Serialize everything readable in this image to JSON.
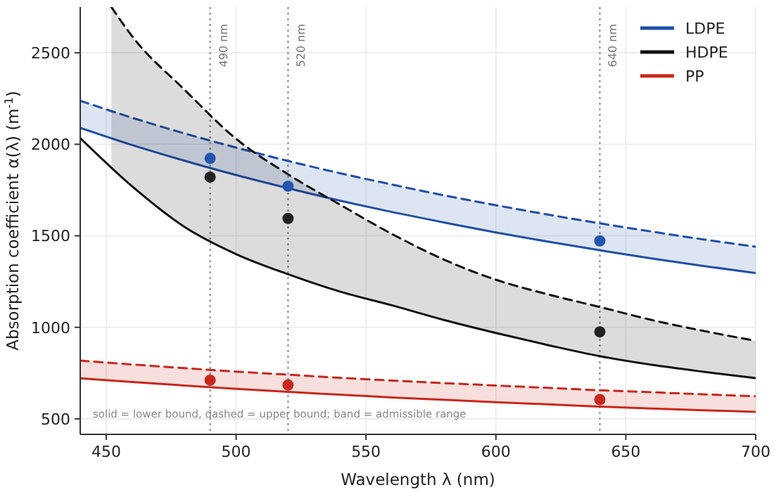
{
  "chart_data": {
    "type": "line",
    "xlabel": "Wavelength λ (nm)",
    "ylabel": "Absorption coefficient α(λ) (m$^{-1}$)",
    "xlim": [
      440,
      700
    ],
    "xticks": [
      450,
      500,
      550,
      600,
      650,
      700
    ],
    "ylim": [
      415,
      2750
    ],
    "yticks": [
      500,
      1000,
      1500,
      2000,
      2500
    ],
    "grid": true,
    "legend": "top right",
    "series": [
      {
        "name": "LDPE",
        "color": "#1f4fa8",
        "line_style": "solid",
        "x": [
          440,
          460,
          480,
          500,
          520,
          540,
          560,
          580,
          600,
          620,
          640,
          660,
          680,
          700
        ],
        "values": [
          2090,
          1996,
          1911,
          1832,
          1760,
          1692,
          1630,
          1573,
          1518,
          1468,
          1421,
          1376,
          1335,
          1296
        ]
      },
      {
        "color": "#1f4fa8",
        "line_style": "dashed",
        "x": [
          440,
          460,
          480,
          500,
          520,
          540,
          560,
          580,
          600,
          620,
          640,
          660,
          680,
          700
        ],
        "values": [
          2238,
          2145,
          2060,
          1982,
          1909,
          1842,
          1780,
          1721,
          1667,
          1616,
          1568,
          1523,
          1480,
          1440
        ],
        "lower": [
          2090,
          1996,
          1911,
          1832,
          1760,
          1692,
          1630,
          1573,
          1518,
          1468,
          1421,
          1376,
          1335,
          1296
        ],
        "upper": [
          2238,
          2145,
          2060,
          1982,
          1909,
          1842,
          1780,
          1721,
          1667,
          1616,
          1568,
          1523,
          1480,
          1440
        ]
      },
      {
        "name": "HDPE",
        "color": "#111111",
        "line_style": "solid",
        "x": [
          440,
          460,
          480,
          500,
          520,
          540,
          560,
          580,
          600,
          620,
          640,
          660,
          680,
          700
        ],
        "values": [
          2034,
          1770,
          1550,
          1400,
          1290,
          1195,
          1120,
          1040,
          969,
          903,
          842,
          795,
          757,
          722
        ]
      },
      {
        "color": "#111111",
        "line_style": "dashed",
        "x": [
          452,
          460,
          480,
          500,
          520,
          540,
          560,
          580,
          600,
          620,
          640,
          660,
          680,
          700
        ],
        "values": [
          2750,
          2590,
          2300,
          2030,
          1836,
          1670,
          1510,
          1370,
          1260,
          1180,
          1111,
          1040,
          980,
          926
        ],
        "lower": [
          1880,
          1770,
          1550,
          1400,
          1290,
          1195,
          1120,
          1040,
          969,
          903,
          842,
          795,
          757,
          722
        ],
        "upper": [
          2750,
          2590,
          2300,
          2030,
          1836,
          1670,
          1510,
          1370,
          1260,
          1180,
          1111,
          1040,
          980,
          926
        ]
      },
      {
        "name": "PP",
        "color": "#c8281e",
        "line_style": "solid",
        "x": [
          440,
          460,
          480,
          500,
          520,
          540,
          560,
          580,
          600,
          620,
          640,
          660,
          680,
          700
        ],
        "values": [
          721,
          701,
          682,
          664,
          647,
          632,
          617,
          604,
          591,
          579,
          567,
          556,
          547,
          538
        ]
      },
      {
        "color": "#c8281e",
        "line_style": "dashed",
        "x": [
          440,
          460,
          480,
          500,
          520,
          540,
          560,
          580,
          600,
          620,
          640,
          660,
          680,
          700
        ],
        "values": [
          818,
          797,
          777,
          758,
          741,
          724,
          709,
          695,
          682,
          669,
          656,
          645,
          634,
          623
        ],
        "lower": [
          721,
          701,
          682,
          664,
          647,
          632,
          617,
          604,
          591,
          579,
          567,
          556,
          547,
          538
        ],
        "upper": [
          818,
          797,
          777,
          758,
          741,
          724,
          709,
          695,
          682,
          669,
          656,
          645,
          634,
          623
        ]
      },
      {
        "color": "#2356b0",
        "type": "scatter",
        "marker": "circle",
        "x": [
          490,
          520,
          640
        ],
        "values": [
          1923,
          1771,
          1472
        ]
      },
      {
        "color": "#222222",
        "type": "scatter",
        "marker": "circle",
        "x": [
          490,
          520,
          640
        ],
        "values": [
          1821,
          1595,
          975
        ]
      },
      {
        "color": "#c8281e",
        "type": "scatter",
        "marker": "circle",
        "x": [
          490,
          520,
          640
        ],
        "values": [
          711,
          685,
          605
        ]
      }
    ],
    "ref_lines": [
      {
        "axis": "x",
        "value": 490,
        "label": "490 nm",
        "color": "#888888",
        "line_style": "dotted"
      },
      {
        "axis": "x",
        "value": 520,
        "label": "520 nm",
        "color": "#888888",
        "line_style": "dotted"
      },
      {
        "axis": "x",
        "value": 640,
        "label": "640 nm",
        "color": "#888888",
        "line_style": "dotted"
      }
    ],
    "annotations": [
      "solid = lower bound, dashed = upper bound; band = admissible range"
    ]
  }
}
